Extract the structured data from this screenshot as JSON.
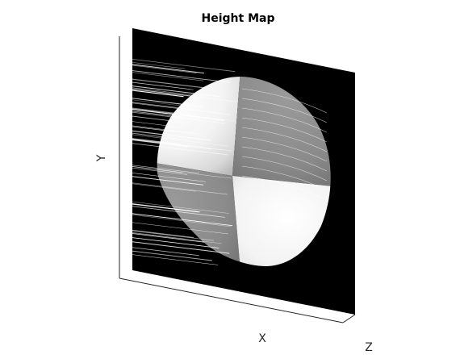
{
  "chart_data": {
    "type": "surface",
    "title": "Height Map",
    "xlabel": "X",
    "ylabel": "Y",
    "zlabel": "Z",
    "colormap": "gray",
    "view": "3d-perspective",
    "grid": false,
    "ticks": false,
    "background_color": "#000000",
    "surface": {
      "shape": "hemisphere",
      "shading": "quadrant checker",
      "quadrant_shades": {
        "top_left": "#f2f2f2",
        "top_right": "#8a8a8a",
        "bottom_left": "#8f8f8f",
        "bottom_right": "#f4f4f4"
      }
    }
  }
}
